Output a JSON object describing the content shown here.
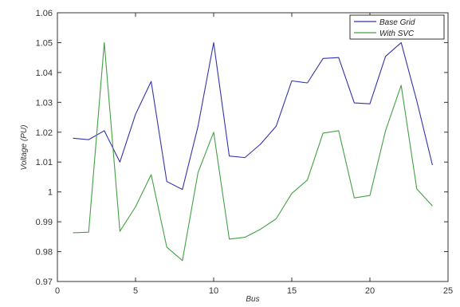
{
  "chart_data": {
    "type": "line",
    "title": "",
    "xlabel": "Bus",
    "ylabel": "Voltage (PU)",
    "xlim": [
      0,
      25
    ],
    "ylim": [
      0.97,
      1.06
    ],
    "x_ticks": [
      "0",
      "5",
      "10",
      "15",
      "20",
      "25"
    ],
    "y_ticks": [
      "0.97",
      "0.98",
      "0.99",
      "1",
      "1.01",
      "1.02",
      "1.03",
      "1.04",
      "1.05",
      "1.06"
    ],
    "grid": false,
    "legend_position": "top-right",
    "x": [
      1,
      2,
      3,
      4,
      5,
      6,
      7,
      8,
      9,
      10,
      11,
      12,
      13,
      14,
      15,
      16,
      17,
      18,
      19,
      20,
      21,
      22,
      23,
      24
    ],
    "series": [
      {
        "name": "Base Grid",
        "color": "#3333aa",
        "values": [
          1.018,
          1.0175,
          1.0205,
          1.01,
          1.026,
          1.037,
          1.0035,
          1.0008,
          1.022,
          1.05,
          1.012,
          1.0115,
          1.016,
          1.022,
          1.0372,
          1.0365,
          1.0447,
          1.045,
          1.0298,
          1.0295,
          1.0454,
          1.05,
          1.0305,
          1.009
        ]
      },
      {
        "name": "With SVC",
        "color": "#44a044",
        "values": [
          0.9863,
          0.9865,
          1.05,
          0.9868,
          0.995,
          1.0058,
          0.9815,
          0.977,
          1.0065,
          1.02,
          0.9842,
          0.9848,
          0.9875,
          0.991,
          0.9995,
          1.004,
          1.0197,
          1.0205,
          0.998,
          0.9988,
          1.0205,
          1.0357,
          1.001,
          0.9953
        ]
      }
    ]
  }
}
